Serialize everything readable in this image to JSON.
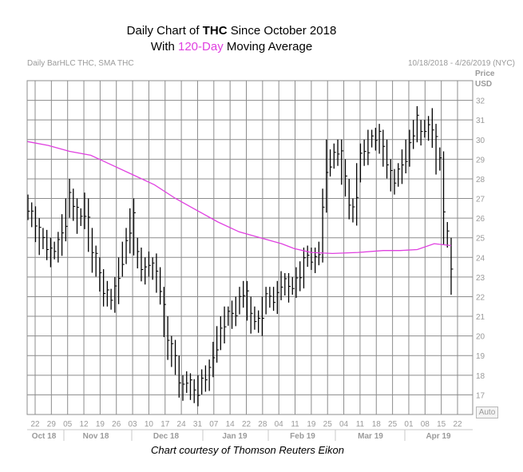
{
  "title": {
    "line1_prefix": "Daily Chart of ",
    "line1_ticker": "THC",
    "line1_suffix": " Since October 2018",
    "line2_prefix": "With ",
    "line2_highlight": "120-Day",
    "line2_suffix": " Moving Average"
  },
  "header": {
    "left": "Daily BarHLC THC, SMA THC",
    "right": "10/18/2018 - 4/26/2019 (NYC)"
  },
  "axis": {
    "price_label": "Price",
    "currency_label": "USD",
    "auto_label": "Auto"
  },
  "caption": "Chart courtesy of Thomson Reuters Eikon",
  "colors": {
    "grid": "#8c8c8c",
    "bars": "#000000",
    "sma": "#e040e0",
    "axis_text": "#9a9a9a"
  },
  "chart_data": {
    "type": "line",
    "title": "Daily Chart of THC Since October 2018 With 120-Day Moving Average",
    "xlabel": "",
    "ylabel": "Price USD",
    "ylim": [
      16,
      33
    ],
    "yticks": [
      17,
      18,
      19,
      20,
      21,
      22,
      23,
      24,
      25,
      26,
      27,
      28,
      29,
      30,
      31,
      32
    ],
    "grid": true,
    "x_day_ticks": [
      "22",
      "29",
      "05",
      "12",
      "19",
      "26",
      "03",
      "10",
      "17",
      "24",
      "31",
      "07",
      "14",
      "22",
      "28",
      "04",
      "11",
      "19",
      "25",
      "04",
      "11",
      "18",
      "25",
      "01",
      "08",
      "15",
      "22"
    ],
    "x_month_labels": [
      "Oct 18",
      "Nov 18",
      "Dec 18",
      "Jan 19",
      "Feb 19",
      "Mar 19",
      "Apr 19"
    ],
    "series": [
      {
        "name": "THC",
        "kind": "hlc_bars",
        "high": [
          27.2,
          26.8,
          26.6,
          26.0,
          25.5,
          25.4,
          25.0,
          24.8,
          25.3,
          26.2,
          27.0,
          28.0,
          27.5,
          27.0,
          26.5,
          27.3,
          27.0,
          25.5,
          24.6,
          24.0,
          23.4,
          22.8,
          22.4,
          23.0,
          24.0,
          24.8,
          25.5,
          26.5,
          27.0,
          25.0,
          24.5,
          24.0,
          24.3,
          24.0,
          24.2,
          23.5,
          22.5,
          21.0,
          20.0,
          19.8,
          19.0,
          18.0,
          18.2,
          18.1,
          17.8,
          18.0,
          18.3,
          18.5,
          18.8,
          19.7,
          20.5,
          21.0,
          21.5,
          21.5,
          21.8,
          22.0,
          22.5,
          22.8,
          22.8,
          22.0,
          21.5,
          21.3,
          22.0,
          22.5,
          22.5,
          22.5,
          22.8,
          23.3,
          23.2,
          23.2,
          23.0,
          23.5,
          23.8,
          24.5,
          24.6,
          24.5,
          24.5,
          24.8,
          27.5,
          30.0,
          29.5,
          29.8,
          30.0,
          30.0,
          29.0,
          28.0,
          27.0,
          28.8,
          29.8,
          30.0,
          30.5,
          30.5,
          30.6,
          30.8,
          30.5,
          30.0,
          29.0,
          28.5,
          28.8,
          29.5,
          30.0,
          30.5,
          31.0,
          31.7,
          31.0,
          31.0,
          31.2,
          31.6,
          30.8,
          29.6,
          29.4,
          25.8,
          25.0
        ]
      },
      {
        "name": "SMA THC",
        "kind": "line",
        "values": [
          [
            0,
            29.9
          ],
          [
            0.05,
            29.7
          ],
          [
            0.1,
            29.4
          ],
          [
            0.15,
            29.2
          ],
          [
            0.2,
            28.7
          ],
          [
            0.25,
            28.2
          ],
          [
            0.3,
            27.7
          ],
          [
            0.35,
            27.0
          ],
          [
            0.4,
            26.4
          ],
          [
            0.45,
            25.8
          ],
          [
            0.5,
            25.3
          ],
          [
            0.55,
            25.0
          ],
          [
            0.6,
            24.7
          ],
          [
            0.63,
            24.45
          ],
          [
            0.67,
            24.25
          ],
          [
            0.72,
            24.2
          ],
          [
            0.78,
            24.25
          ],
          [
            0.84,
            24.35
          ],
          [
            0.88,
            24.35
          ],
          [
            0.92,
            24.4
          ],
          [
            0.96,
            24.7
          ],
          [
            1.0,
            24.6
          ]
        ]
      }
    ]
  }
}
